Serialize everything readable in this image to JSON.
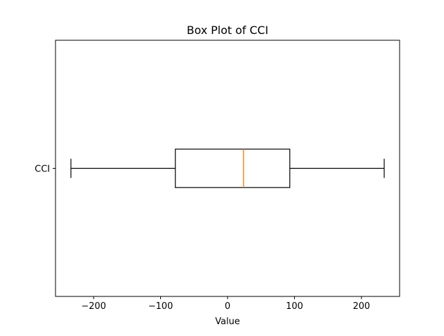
{
  "chart_data": {
    "type": "box",
    "orientation": "horizontal",
    "title": "Box Plot of CCI",
    "xlabel": "Value",
    "ylabel": "",
    "categories": [
      "CCI"
    ],
    "boxes": [
      {
        "label": "CCI",
        "whisker_low": -234,
        "q1": -78,
        "median": 24,
        "q3": 93,
        "whisker_high": 234
      }
    ],
    "xlim": [
      -257,
      257
    ],
    "xticks": [
      -200,
      -100,
      0,
      100,
      200
    ],
    "xtick_labels": [
      "−200",
      "−100",
      "0",
      "100",
      "200"
    ],
    "grid": false,
    "colors": {
      "box": "#000000",
      "median": "#ff7f0e",
      "whisker": "#000000"
    }
  }
}
